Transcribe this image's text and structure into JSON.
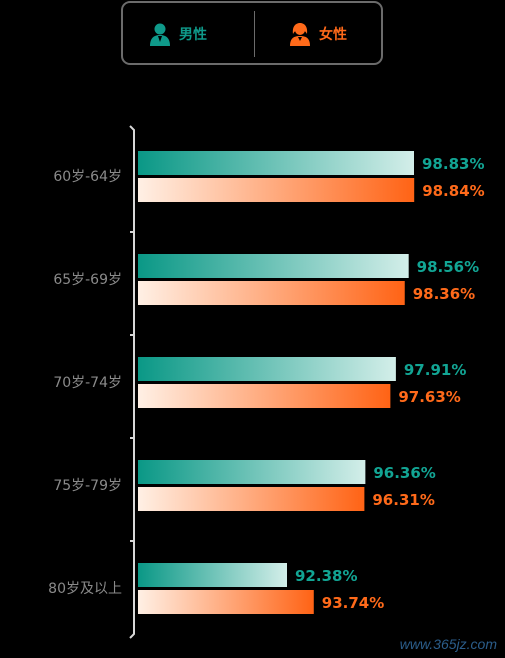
{
  "legend": {
    "male": {
      "label": "男性",
      "icon": "male-person-icon",
      "color": "#0f9a8a"
    },
    "female": {
      "label": "女性",
      "icon": "female-person-icon",
      "color": "#ff6a1a"
    }
  },
  "colors": {
    "male_start": "#0a9886",
    "male_end": "#d3eee9",
    "female_start": "#fff0e5",
    "female_end": "#ff6315",
    "male_text": "#12a594",
    "female_text": "#ff6a1a",
    "axis": "#d8d8d8",
    "category_text": "#8a8a8a"
  },
  "chart_data": {
    "type": "bar",
    "orientation": "horizontal",
    "categories": [
      "60岁-64岁",
      "65岁-69岁",
      "70岁-74岁",
      "75岁-79岁",
      "80岁及以上"
    ],
    "series": [
      {
        "name": "男性",
        "values": [
          98.83,
          98.56,
          97.91,
          96.36,
          92.38
        ],
        "labels": [
          "98.83%",
          "98.56%",
          "97.91%",
          "96.36%",
          "92.38%"
        ]
      },
      {
        "name": "女性",
        "values": [
          98.84,
          98.36,
          97.63,
          96.31,
          93.74
        ],
        "labels": [
          "98.84%",
          "98.36%",
          "97.63%",
          "96.31%",
          "93.74%"
        ]
      }
    ]
  },
  "watermark": "www.365jz.com"
}
